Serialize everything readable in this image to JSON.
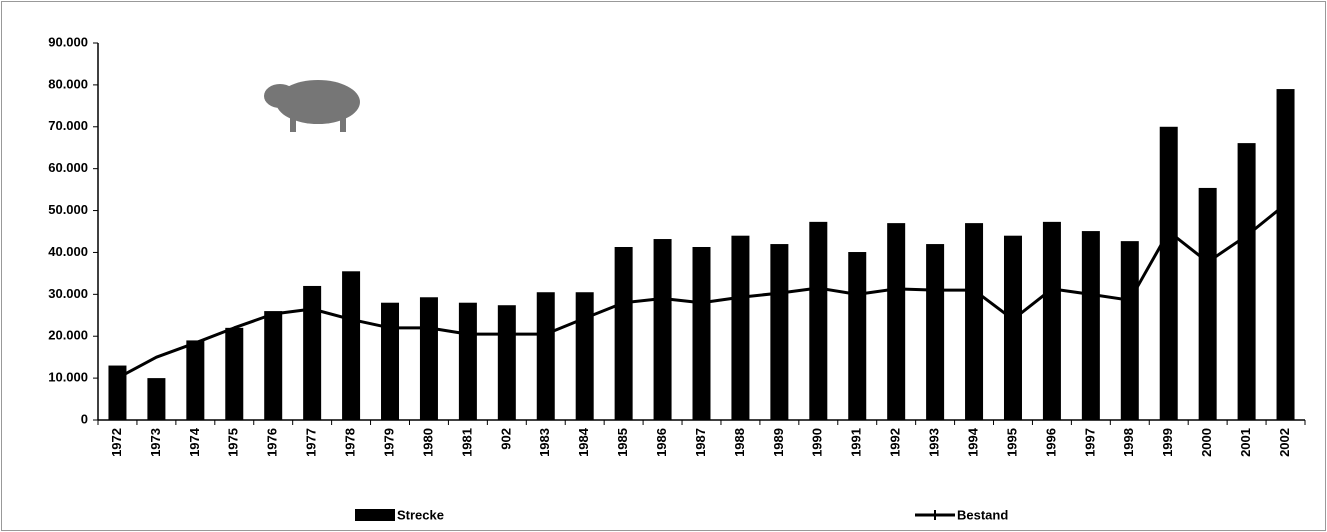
{
  "chart_data": {
    "type": "bar",
    "categories": [
      "1972",
      "1973",
      "1974",
      "1975",
      "1976",
      "1977",
      "1978",
      "1979",
      "1980",
      "1981",
      "902",
      "1983",
      "1984",
      "1985",
      "1986",
      "1987",
      "1988",
      "1989",
      "1990",
      "1991",
      "1992",
      "1993",
      "1994",
      "1995",
      "1996",
      "1997",
      "1998",
      "1999",
      "2000",
      "2001",
      "2002"
    ],
    "series": [
      {
        "name": "Strecke",
        "type": "bar",
        "color": "#000000",
        "values": [
          13000,
          10000,
          19000,
          22000,
          26000,
          32000,
          35500,
          28000,
          29300,
          28000,
          27400,
          30500,
          30500,
          41300,
          43200,
          41300,
          44000,
          42000,
          47300,
          40100,
          47000,
          42000,
          47000,
          44000,
          47300,
          45100,
          42700,
          70000,
          55400,
          66100,
          79000
        ]
      },
      {
        "name": "Bestand",
        "type": "line",
        "color": "#000000",
        "values": [
          10000,
          15000,
          18400,
          22000,
          25300,
          26500,
          24000,
          22000,
          22000,
          20500,
          20500,
          20500,
          24300,
          28000,
          29000,
          28000,
          29300,
          30300,
          31500,
          30000,
          31300,
          31000,
          31000,
          24000,
          31300,
          30000,
          28600,
          45000,
          37700,
          44000,
          51500
        ]
      }
    ],
    "ylim": [
      0,
      90000
    ],
    "yticks": [
      0,
      {
        "value": 10000,
        "label": "10.000"
      },
      {
        "value": 20000,
        "label": "20.000"
      },
      {
        "value": 30000,
        "label": "30.000"
      },
      {
        "value": 40000,
        "label": "40.000"
      },
      {
        "value": 50000,
        "label": "50.000"
      },
      {
        "value": 60000,
        "label": "60.000"
      },
      {
        "value": 70000,
        "label": "70.000"
      },
      {
        "value": 80000,
        "label": "80.000"
      },
      {
        "value": 90000,
        "label": "90.000"
      }
    ],
    "grid": false
  }
}
